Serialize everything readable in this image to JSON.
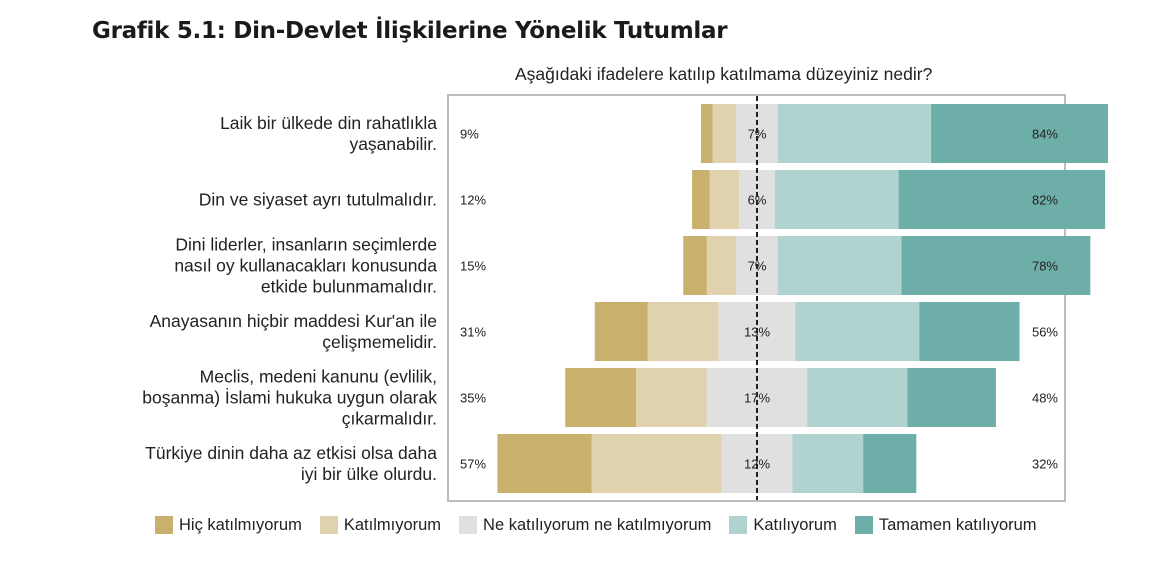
{
  "title": "Grafik 5.1: Din-Devlet İlişkilerine Yönelik Tutumlar",
  "chart_data": {
    "type": "bar",
    "subtitle": "Aşağıdaki ifadelere katılıp katılmama düzeyiniz nedir?",
    "categories": [
      [
        "Laik bir ülkede din rahatlıkla",
        "yaşanabilir."
      ],
      [
        "Din ve siyaset ayrı tutulmalıdır."
      ],
      [
        "Dini liderler, insanların seçimlerde",
        "nasıl oy kullanacakları konusunda",
        "etkide bulunmamalıdır."
      ],
      [
        "Anayasanın hiçbir maddesi Kur'an ile",
        "çelişmemelidir."
      ],
      [
        "Meclis, medeni kanunu (evlilik,",
        "boşanma) İslami hukuka uygun olarak",
        "çıkarmalıdır."
      ],
      [
        "Türkiye dinin daha az etkisi olsa daha",
        "iyi bir ülke olurdu."
      ]
    ],
    "series": [
      {
        "name": "Hiç katılmıyorum",
        "color": "#c9b06c",
        "values": [
          2,
          3,
          4,
          9,
          12,
          16
        ]
      },
      {
        "name": "Katılmıyorum",
        "color": "#e0d2af",
        "values": [
          4,
          5,
          5,
          12,
          12,
          22
        ]
      },
      {
        "name": "Ne katılıyorum ne katılmıyorum",
        "color": "#e0e0e0",
        "values": [
          7,
          6,
          7,
          13,
          17,
          12
        ]
      },
      {
        "name": "Katılıyorum",
        "color": "#b0d3d0",
        "values": [
          26,
          21,
          21,
          21,
          17,
          12
        ]
      },
      {
        "name": "Tamamen katılıyorum",
        "color": "#6eaea8",
        "values": [
          30,
          35,
          32,
          17,
          15,
          9
        ]
      }
    ],
    "disagree_labels": [
      "9%",
      "12%",
      "15%",
      "31%",
      "35%",
      "57%"
    ],
    "neutral_labels": [
      "7%",
      "6%",
      "7%",
      "13%",
      "17%",
      "12%"
    ],
    "agree_labels": [
      "84%",
      "82%",
      "78%",
      "56%",
      "48%",
      "32%"
    ],
    "xlim": [
      -42,
      60
    ],
    "grid": false,
    "legend_position": "bottom"
  }
}
